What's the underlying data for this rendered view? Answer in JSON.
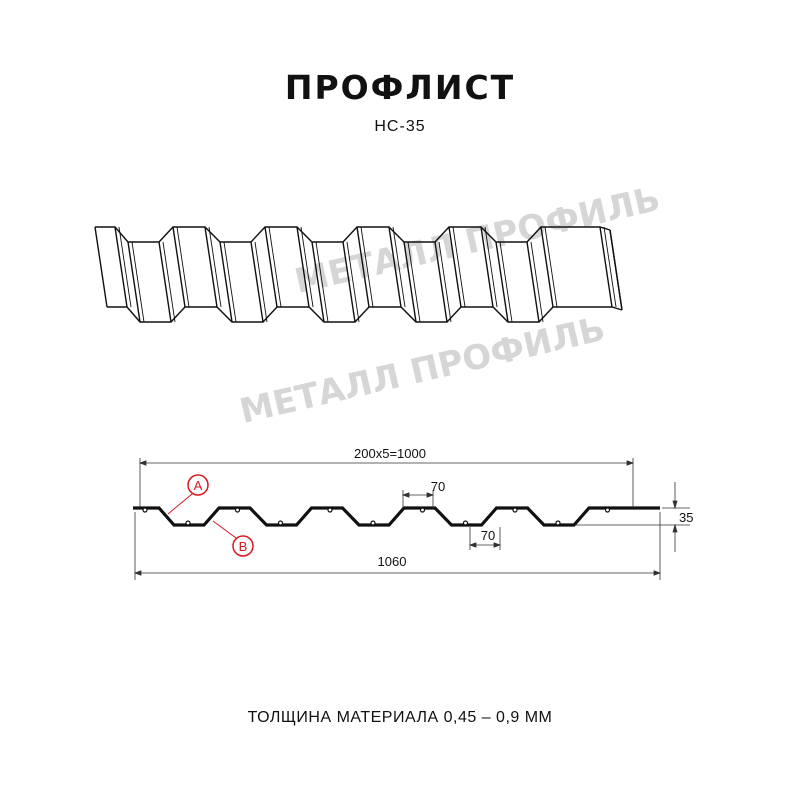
{
  "header": {
    "title": "ПРОФЛИСТ",
    "model": "НС-35"
  },
  "watermark": {
    "text": "МЕТАЛЛ ПРОФИЛЬ"
  },
  "drawing": {
    "dim_pitch_total": "200x5=1000",
    "dim_top_flat": "70",
    "dim_bottom_flat": "70",
    "dim_height": "35",
    "dim_full_width": "1060",
    "marker_a": "A",
    "marker_b": "B",
    "marker_color": "#d71920"
  },
  "footer": {
    "thickness": "ТОЛЩИНА МАТЕРИАЛА 0,45 – 0,9 ММ"
  }
}
